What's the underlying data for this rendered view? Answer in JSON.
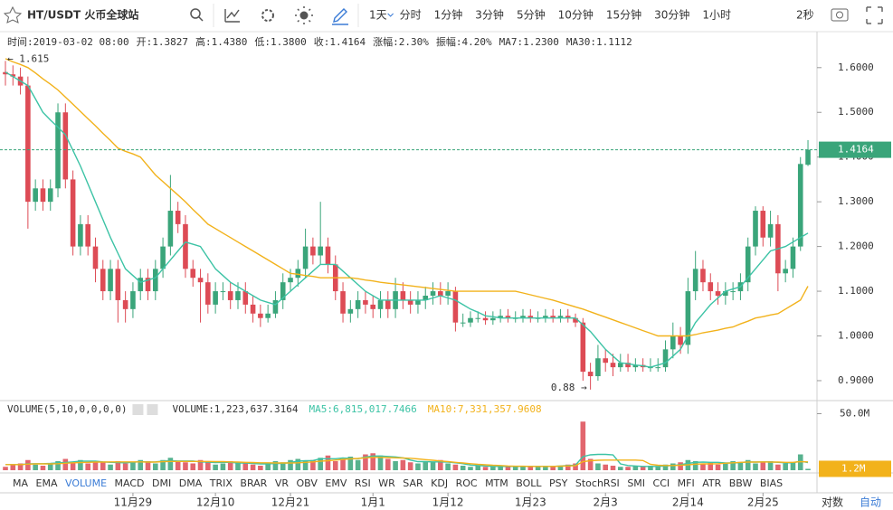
{
  "toolbar": {
    "symbol": "HT/USDT 火币全球站",
    "intervals": [
      "1天",
      "分时",
      "1分钟",
      "3分钟",
      "5分钟",
      "10分钟",
      "15分钟",
      "30分钟",
      "1小时"
    ],
    "refresh": "2秒"
  },
  "info": [
    {
      "label": "时间:",
      "value": "2019-03-02 08:00"
    },
    {
      "label": "开:",
      "value": "1.3827"
    },
    {
      "label": "高:",
      "value": "1.4380"
    },
    {
      "label": "低:",
      "value": "1.3800"
    },
    {
      "label": "收:",
      "value": "1.4164"
    },
    {
      "label": "涨幅:",
      "value": "2.30%",
      "color": "#3aa57a"
    },
    {
      "label": "振幅:",
      "value": "4.20%"
    },
    {
      "label": "MA7:",
      "value": "1.2300",
      "color": "#3cc3a5"
    },
    {
      "label": "MA30:",
      "value": "1.1112",
      "color": "#f2b21b"
    }
  ],
  "chart_data": {
    "type": "candlestick",
    "up_color": "#3aa57a",
    "down_color": "#dd4b55",
    "open": [
      1.59,
      1.585,
      1.58,
      1.56,
      1.3,
      1.33,
      1.3,
      1.33,
      1.5,
      1.35,
      1.2,
      1.25,
      1.2,
      1.15,
      1.1,
      1.15,
      1.08,
      1.06,
      1.1,
      1.13,
      1.1,
      1.15,
      1.2,
      1.28,
      1.25,
      1.15,
      1.13,
      1.12,
      1.07,
      1.1,
      1.1,
      1.08,
      1.1,
      1.07,
      1.05,
      1.04,
      1.05,
      1.08,
      1.12,
      1.13,
      1.15,
      1.2,
      1.18,
      1.2,
      1.16,
      1.1,
      1.05,
      1.06,
      1.08,
      1.07,
      1.06,
      1.08,
      1.06,
      1.1,
      1.08,
      1.07,
      1.08,
      1.09,
      1.1,
      1.09,
      1.1,
      1.03,
      1.03,
      1.04,
      1.04,
      1.035,
      1.04,
      1.045,
      1.04,
      1.04,
      1.045,
      1.04,
      1.04,
      1.045,
      1.04,
      1.045,
      1.04,
      1.03,
      0.92,
      0.91,
      0.95,
      0.94,
      0.93,
      0.94,
      0.93,
      0.935,
      0.93,
      0.93,
      0.93,
      0.97,
      1.0,
      0.98,
      1.1,
      1.15,
      1.12,
      1.1,
      1.09,
      1.1,
      1.1,
      1.12,
      1.2,
      1.28,
      1.22,
      1.25,
      1.14,
      1.15,
      1.2,
      1.3827
    ],
    "high": [
      1.615,
      1.605,
      1.6,
      1.58,
      1.35,
      1.35,
      1.35,
      1.52,
      1.52,
      1.37,
      1.27,
      1.27,
      1.22,
      1.17,
      1.17,
      1.17,
      1.1,
      1.12,
      1.15,
      1.15,
      1.17,
      1.22,
      1.36,
      1.3,
      1.27,
      1.17,
      1.15,
      1.14,
      1.12,
      1.12,
      1.12,
      1.12,
      1.12,
      1.09,
      1.07,
      1.07,
      1.1,
      1.14,
      1.15,
      1.17,
      1.24,
      1.22,
      1.3,
      1.22,
      1.18,
      1.12,
      1.08,
      1.1,
      1.1,
      1.09,
      1.1,
      1.1,
      1.13,
      1.12,
      1.1,
      1.1,
      1.11,
      1.12,
      1.12,
      1.12,
      1.11,
      1.05,
      1.055,
      1.055,
      1.055,
      1.055,
      1.06,
      1.06,
      1.055,
      1.06,
      1.06,
      1.055,
      1.06,
      1.06,
      1.06,
      1.06,
      1.05,
      1.04,
      0.94,
      0.98,
      0.97,
      0.96,
      0.96,
      0.96,
      0.95,
      0.95,
      0.95,
      0.95,
      0.99,
      1.03,
      1.02,
      1.13,
      1.19,
      1.17,
      1.14,
      1.12,
      1.12,
      1.12,
      1.14,
      1.22,
      1.29,
      1.29,
      1.28,
      1.27,
      1.17,
      1.22,
      1.4,
      1.438
    ],
    "low": [
      1.56,
      1.56,
      1.54,
      1.24,
      1.28,
      1.28,
      1.28,
      1.31,
      1.33,
      1.18,
      1.18,
      1.18,
      1.12,
      1.08,
      1.08,
      1.03,
      1.03,
      1.04,
      1.08,
      1.08,
      1.08,
      1.13,
      1.18,
      1.23,
      1.13,
      1.11,
      1.03,
      1.05,
      1.05,
      1.08,
      1.06,
      1.06,
      1.05,
      1.03,
      1.02,
      1.03,
      1.04,
      1.06,
      1.1,
      1.11,
      1.13,
      1.16,
      1.16,
      1.14,
      1.08,
      1.03,
      1.03,
      1.04,
      1.05,
      1.04,
      1.04,
      1.04,
      1.04,
      1.06,
      1.05,
      1.05,
      1.06,
      1.07,
      1.07,
      1.07,
      1.01,
      1.02,
      1.02,
      1.03,
      1.025,
      1.025,
      1.03,
      1.03,
      1.03,
      1.03,
      1.03,
      1.03,
      1.03,
      1.03,
      1.03,
      1.03,
      1.02,
      0.9,
      0.88,
      0.9,
      0.92,
      0.91,
      0.92,
      0.92,
      0.92,
      0.92,
      0.92,
      0.92,
      0.92,
      0.95,
      0.96,
      0.96,
      1.08,
      1.1,
      1.08,
      1.07,
      1.07,
      1.08,
      1.08,
      1.1,
      1.18,
      1.2,
      1.2,
      1.1,
      1.12,
      1.13,
      1.19,
      1.38
    ],
    "close": [
      1.585,
      1.58,
      1.56,
      1.3,
      1.33,
      1.3,
      1.33,
      1.5,
      1.35,
      1.2,
      1.25,
      1.2,
      1.15,
      1.1,
      1.15,
      1.08,
      1.06,
      1.1,
      1.13,
      1.1,
      1.15,
      1.2,
      1.28,
      1.25,
      1.15,
      1.13,
      1.12,
      1.07,
      1.1,
      1.1,
      1.08,
      1.1,
      1.07,
      1.05,
      1.04,
      1.05,
      1.08,
      1.12,
      1.13,
      1.15,
      1.2,
      1.18,
      1.2,
      1.16,
      1.1,
      1.05,
      1.06,
      1.08,
      1.07,
      1.06,
      1.08,
      1.06,
      1.1,
      1.08,
      1.07,
      1.08,
      1.09,
      1.1,
      1.09,
      1.1,
      1.03,
      1.03,
      1.04,
      1.04,
      1.035,
      1.04,
      1.045,
      1.04,
      1.04,
      1.045,
      1.04,
      1.04,
      1.045,
      1.04,
      1.045,
      1.04,
      1.03,
      0.92,
      0.91,
      0.95,
      0.94,
      0.93,
      0.94,
      0.93,
      0.935,
      0.93,
      0.93,
      0.93,
      0.97,
      1.0,
      0.98,
      1.1,
      1.15,
      1.12,
      1.1,
      1.09,
      1.1,
      1.1,
      1.12,
      1.2,
      1.28,
      1.22,
      1.25,
      1.14,
      1.15,
      1.2,
      1.3846,
      1.4164
    ],
    "ma_series": [
      {
        "name": "MA7",
        "color": "#3cc3a5",
        "values": [
          1.59,
          1.58,
          1.57,
          1.56,
          1.53,
          1.5,
          1.483,
          1.467,
          1.45,
          1.415,
          1.38,
          1.34,
          1.3,
          1.26,
          1.22,
          1.185,
          1.15,
          1.135,
          1.12,
          1.125,
          1.13,
          1.15,
          1.17,
          1.19,
          1.21,
          1.205,
          1.2,
          1.175,
          1.15,
          1.135,
          1.12,
          1.11,
          1.1,
          1.09,
          1.08,
          1.075,
          1.07,
          1.085,
          1.1,
          1.115,
          1.13,
          1.145,
          1.16,
          1.16,
          1.16,
          1.145,
          1.13,
          1.115,
          1.1,
          1.09,
          1.08,
          1.08,
          1.08,
          1.08,
          1.08,
          1.08,
          1.08,
          1.085,
          1.09,
          1.085,
          1.08,
          1.07,
          1.06,
          1.053,
          1.045,
          1.043,
          1.04,
          1.04,
          1.04,
          1.04,
          1.04,
          1.04,
          1.04,
          1.04,
          1.04,
          1.04,
          1.04,
          1.025,
          1.01,
          0.99,
          0.97,
          0.955,
          0.94,
          0.938,
          0.935,
          0.933,
          0.93,
          0.935,
          0.94,
          0.955,
          0.97,
          1.0,
          1.03,
          1.05,
          1.07,
          1.085,
          1.1,
          1.105,
          1.11,
          1.13,
          1.15,
          1.17,
          1.19,
          1.195,
          1.2,
          1.21,
          1.22,
          1.23
        ]
      },
      {
        "name": "MA30",
        "color": "#f2b21b",
        "values": [
          1.62,
          1.613,
          1.607,
          1.6,
          1.588,
          1.575,
          1.563,
          1.55,
          1.534,
          1.518,
          1.502,
          1.486,
          1.47,
          1.453,
          1.437,
          1.42,
          1.413,
          1.407,
          1.4,
          1.38,
          1.36,
          1.345,
          1.33,
          1.315,
          1.3,
          1.283,
          1.267,
          1.25,
          1.24,
          1.23,
          1.22,
          1.21,
          1.2,
          1.19,
          1.18,
          1.17,
          1.16,
          1.15,
          1.14,
          1.138,
          1.135,
          1.133,
          1.13,
          1.13,
          1.13,
          1.13,
          1.13,
          1.128,
          1.125,
          1.123,
          1.12,
          1.118,
          1.116,
          1.114,
          1.112,
          1.11,
          1.108,
          1.106,
          1.104,
          1.102,
          1.1,
          1.1,
          1.1,
          1.1,
          1.1,
          1.1,
          1.1,
          1.1,
          1.1,
          1.096,
          1.092,
          1.088,
          1.084,
          1.08,
          1.075,
          1.07,
          1.065,
          1.06,
          1.054,
          1.048,
          1.042,
          1.036,
          1.03,
          1.024,
          1.018,
          1.012,
          1.006,
          1.0,
          1.0,
          1.0,
          1.0,
          1.0,
          1.003,
          1.007,
          1.01,
          1.013,
          1.017,
          1.02,
          1.027,
          1.033,
          1.04,
          1.043,
          1.047,
          1.05,
          1.06,
          1.07,
          1.08,
          1.1112
        ]
      }
    ],
    "ylim": [
      0.8615,
      1.6744
    ],
    "yticks": [
      {
        "value": 1.6,
        "label": "1.6000"
      },
      {
        "value": 1.5,
        "label": "1.5000"
      },
      {
        "value": 1.4,
        "label": "1.4000"
      },
      {
        "value": 1.3,
        "label": "1.3000"
      },
      {
        "value": 1.2,
        "label": "1.2000"
      },
      {
        "value": 1.1,
        "label": "1.1000"
      },
      {
        "value": 1.0,
        "label": "1.0000"
      },
      {
        "value": 0.9,
        "label": "0.9000"
      }
    ],
    "max_label": "← 1.615",
    "min_label": "0.88 →",
    "volume": [
      3000000.0,
      5000000.0,
      6000000.0,
      9000000.0,
      5000000.0,
      4000000.0,
      6000000.0,
      8000000.0,
      10000000.0,
      7000000.0,
      9000000.0,
      6000000.0,
      8000000.0,
      7000000.0,
      5000000.0,
      8000000.0,
      6000000.0,
      7000000.0,
      9000000.0,
      8000000.0,
      6000000.0,
      9000000.0,
      11000000.0,
      8000000.0,
      7000000.0,
      6000000.0,
      9000000.0,
      7000000.0,
      5000000.0,
      6000000.0,
      8000000.0,
      6000000.0,
      7000000.0,
      5000000.0,
      4000000.0,
      6000000.0,
      8000000.0,
      7000000.0,
      9000000.0,
      10000000.0,
      8000000.0,
      9000000.0,
      11000000.0,
      13000000.0,
      8000000.0,
      10000000.0,
      12000000.0,
      9000000.0,
      14000000.0,
      15000000.0,
      13000000.0,
      10000000.0,
      8000000.0,
      9000000.0,
      7000000.0,
      6000000.0,
      8000000.0,
      7000000.0,
      9000000.0,
      6000000.0,
      5000000.0,
      4000000.0,
      3000000.0,
      4000000.0,
      3000000.0,
      3000000.0,
      4000000.0,
      3000000.0,
      3000000.0,
      4000000.0,
      3000000.0,
      3000000.0,
      4000000.0,
      3000000.0,
      4000000.0,
      5000000.0,
      6000000.0,
      43000000.0,
      10000000.0,
      6000000.0,
      5000000.0,
      4000000.0,
      3000000.0,
      3000000.0,
      4000000.0,
      3000000.0,
      4000000.0,
      3000000.0,
      5000000.0,
      6000000.0,
      7000000.0,
      9000000.0,
      8000000.0,
      6000000.0,
      7000000.0,
      5000000.0,
      6000000.0,
      8000000.0,
      7000000.0,
      9000000.0,
      6000000.0,
      7000000.0,
      8000000.0,
      5000000.0,
      6000000.0,
      7000000.0,
      14000000.0,
      1223637.3164
    ],
    "volume_ma_series": [
      {
        "name": "MA5",
        "color": "#3cc3a5",
        "values": [
          5000000.0,
          5000000.0,
          5000000.0,
          5600000.0,
          5800000.0,
          5800000.0,
          6000000.0,
          6400000.0,
          6800000.0,
          7400000.0,
          8000000.0,
          8000000.0,
          8000000.0,
          7400000.0,
          7000000.0,
          6800000.0,
          6600000.0,
          7000000.0,
          7600000.0,
          7200000.0,
          7400000.0,
          8000000.0,
          8400000.0,
          8200000.0,
          8200000.0,
          8200000.0,
          7400000.0,
          7200000.0,
          6800000.0,
          7000000.0,
          7000000.0,
          6400000.0,
          6400000.0,
          6000000.0,
          5600000.0,
          5600000.0,
          6000000.0,
          6000000.0,
          6800000.0,
          8000000.0,
          8400000.0,
          8600000.0,
          10200000.0,
          10200000.0,
          10200000.0,
          10800000.0,
          10400000.0,
          10200000.0,
          11600000.0,
          12600000.0,
          12600000.0,
          12200000.0,
          11800000.0,
          11000000.0,
          9000000.0,
          7600000.0,
          7600000.0,
          7400000.0,
          7400000.0,
          7200000.0,
          6600000.0,
          5800000.0,
          4600000.0,
          4200000.0,
          3800000.0,
          3400000.0,
          3400000.0,
          3400000.0,
          3400000.0,
          3400000.0,
          3400000.0,
          3400000.0,
          3400000.0,
          3400000.0,
          3800000.0,
          4200000.0,
          4400000.0,
          12000000.0,
          13600000.0,
          14000000.0,
          14000000.0,
          13600000.0,
          5600000.0,
          4200000.0,
          3800000.0,
          3400000.0,
          3400000.0,
          3400000.0,
          3800000.0,
          4200000.0,
          5000000.0,
          6000000.0,
          7000000.0,
          7200000.0,
          7000000.0,
          7000000.0,
          6400000.0,
          6400000.0,
          6800000.0,
          7400000.0,
          7200000.0,
          7400000.0,
          7400000.0,
          7000000.0,
          6600000.0,
          6600000.0,
          8000000.0,
          6815017.7466
        ]
      },
      {
        "name": "MA10",
        "color": "#f2b21b",
        "values": [
          5000000.0,
          5000000.0,
          5000000.0,
          5400000.0,
          5600000.0,
          5600000.0,
          5600000.0,
          5800000.0,
          6200000.0,
          6600000.0,
          6800000.0,
          7000000.0,
          7200000.0,
          7200000.0,
          7400000.0,
          7400000.0,
          7400000.0,
          7400000.0,
          7400000.0,
          7200000.0,
          7200000.0,
          7600000.0,
          7800000.0,
          7800000.0,
          7800000.0,
          7800000.0,
          7800000.0,
          7800000.0,
          7600000.0,
          7600000.0,
          7400000.0,
          7200000.0,
          7000000.0,
          6800000.0,
          6600000.0,
          6600000.0,
          6400000.0,
          6400000.0,
          6400000.0,
          6600000.0,
          7000000.0,
          7400000.0,
          8000000.0,
          8400000.0,
          9000000.0,
          9600000.0,
          10000000.0,
          10400000.0,
          11000000.0,
          11400000.0,
          11400000.0,
          11200000.0,
          11000000.0,
          10800000.0,
          10600000.0,
          10000000.0,
          9400000.0,
          8800000.0,
          8200000.0,
          7600000.0,
          7000000.0,
          6400000.0,
          5800000.0,
          5200000.0,
          4800000.0,
          4400000.0,
          4200000.0,
          3800000.0,
          3500000.0,
          3500000.0,
          3400000.0,
          3400000.0,
          3400000.0,
          3400000.0,
          3600000.0,
          3800000.0,
          4000000.0,
          7600000.0,
          8400000.0,
          8800000.0,
          9000000.0,
          9000000.0,
          9000000.0,
          9000000.0,
          9000000.0,
          8600000.0,
          5200000.0,
          4400000.0,
          4200000.0,
          4200000.0,
          4400000.0,
          4800000.0,
          5400000.0,
          5600000.0,
          5600000.0,
          5800000.0,
          6200000.0,
          6600000.0,
          7000000.0,
          7200000.0,
          7200000.0,
          7400000.0,
          7200000.0,
          7200000.0,
          7000000.0,
          7000000.0,
          7600000.0,
          7331357.9608
        ]
      }
    ],
    "vlim": [
      0,
      60000000
    ],
    "vticks": [
      {
        "value": 50000000,
        "label": "50.0M"
      }
    ],
    "current_volume_label": "1.2M",
    "volume_legend": [
      "VOLUME(5,10,0,0,0,0)",
      "VOLUME:1,223,637.3164",
      "MA5:6,815,017.7466",
      "MA10:7,331,357.9608"
    ],
    "xticks": [
      {
        "value": 17,
        "label": "11月29"
      },
      {
        "value": 28,
        "label": "12月10"
      },
      {
        "value": 38,
        "label": "12月21"
      },
      {
        "value": 49,
        "label": "1月1"
      },
      {
        "value": 59,
        "label": "1月12"
      },
      {
        "value": 70,
        "label": "1月23"
      },
      {
        "value": 80,
        "label": "2月3"
      },
      {
        "value": 91,
        "label": "2月14"
      },
      {
        "value": 101,
        "label": "2月25"
      }
    ]
  },
  "indicators": [
    "MA",
    "EMA",
    "VOLUME",
    "MACD",
    "DMI",
    "DMA",
    "TRIX",
    "BRAR",
    "VR",
    "OBV",
    "EMV",
    "RSI",
    "WR",
    "SAR",
    "KDJ",
    "ROC",
    "MTM",
    "BOLL",
    "PSY",
    "StochRSI",
    "SMI",
    "CCI",
    "MFI",
    "ATR",
    "BBW",
    "BIAS"
  ],
  "active_indicator": "VOLUME",
  "axis_options": [
    "对数",
    "自动"
  ]
}
